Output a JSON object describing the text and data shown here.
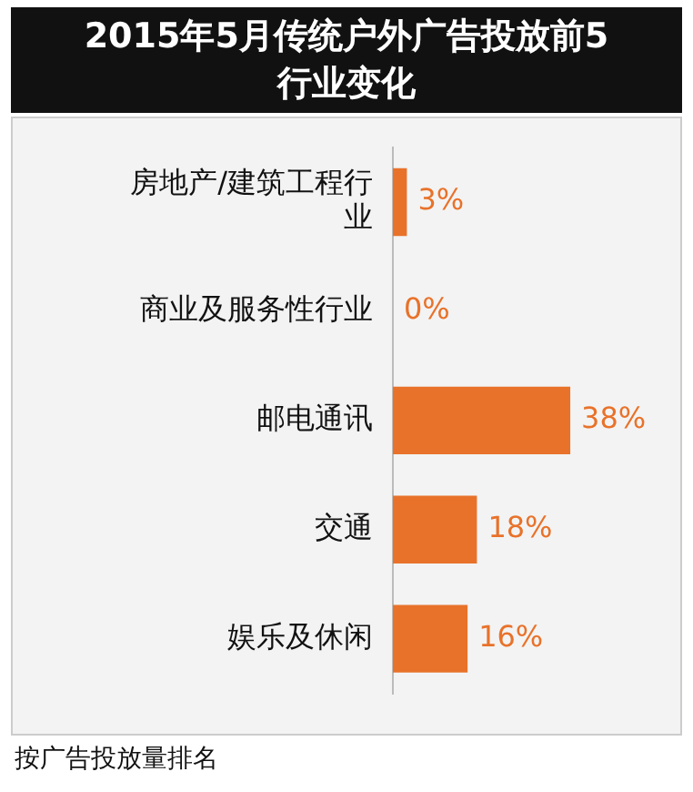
{
  "chart_data": {
    "type": "bar",
    "orientation": "horizontal",
    "title": "2015年5月传统户外广告投放前5行业变化",
    "categories": [
      "房地产/建筑工程行业",
      "商业及服务性行业",
      "邮电通讯",
      "交通",
      "娱乐及休闲"
    ],
    "values": [
      3,
      0,
      38,
      18,
      16
    ],
    "color": "#e8722a",
    "value_labels": [
      "3%",
      "0%",
      "38%",
      "18%",
      "16%"
    ],
    "annotations": [
      "按广告投放量排名"
    ]
  }
}
